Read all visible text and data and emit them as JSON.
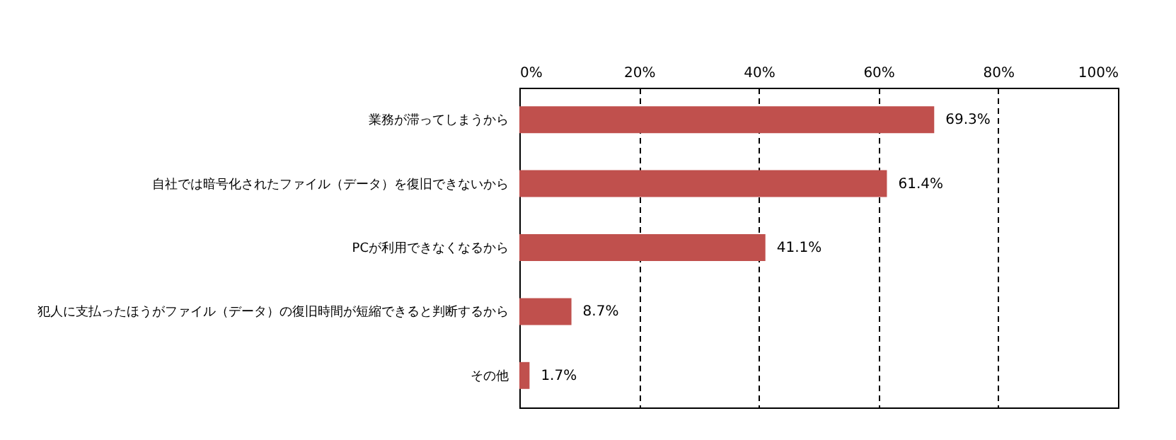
{
  "chart_data": {
    "type": "bar",
    "orientation": "horizontal",
    "categories": [
      "業務が滞ってしまうから",
      "自社では暗号化されたファイル（データ）を復旧できないから",
      "PCが利用できなくなるから",
      "犯人に支払ったほうがファイル（データ）の復旧時間が短縮できると判断するから",
      "その他"
    ],
    "values": [
      69.3,
      61.4,
      41.1,
      8.7,
      1.7
    ],
    "value_labels": [
      "69.3%",
      "61.4%",
      "41.1%",
      "8.7%",
      "1.7%"
    ],
    "color": "#c0504d",
    "xlim": [
      0,
      100
    ],
    "xticks": [
      {
        "value": 0,
        "label": "0%"
      },
      {
        "value": 20,
        "label": "20%"
      },
      {
        "value": 40,
        "label": "40%"
      },
      {
        "value": 60,
        "label": "60%"
      },
      {
        "value": 80,
        "label": "80%"
      },
      {
        "value": 100,
        "label": "100%"
      }
    ],
    "grid": "x"
  }
}
